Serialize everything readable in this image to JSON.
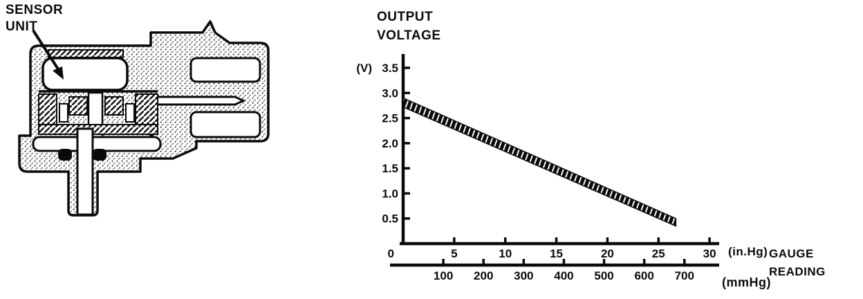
{
  "sensor": {
    "label": "SENSOR\nUNIT"
  },
  "chart": {
    "title": "OUTPUT\nVOLTAGE",
    "y_unit": "(V)",
    "origin_label": "0",
    "x_unit_primary": "(in.Hg)",
    "x_axis_name": "GAUGE\nREADING",
    "x_unit_secondary": "(mmHg)"
  },
  "chart_data": {
    "type": "area",
    "title": "OUTPUT VOLTAGE vs GAUGE READING",
    "ylabel": "OUTPUT VOLTAGE (V)",
    "xlabel": "GAUGE READING (in.Hg top scale, mmHg bottom scale)",
    "ylim": [
      0,
      3.5
    ],
    "xlim_inhg": [
      0,
      30
    ],
    "xlim_mmhg": [
      0,
      760
    ],
    "grid": false,
    "legend": "none",
    "y_ticks": [
      "3.5",
      "3.0",
      "2.5",
      "2.0",
      "1.5",
      "1.0",
      "0.5"
    ],
    "y_tick_values": [
      3.5,
      3.0,
      2.5,
      2.0,
      1.5,
      1.0,
      0.5
    ],
    "x_ticks_inhg": [
      5,
      10,
      15,
      20,
      25,
      30
    ],
    "x_ticks_mmhg": [
      100,
      200,
      300,
      400,
      500,
      600,
      700
    ],
    "series": [
      {
        "name": "output-voltage-tolerance-band",
        "style": "black band with white diagonal hatch",
        "x_inhg": [
          0,
          26.7
        ],
        "v_top": [
          2.9,
          0.5
        ],
        "v_bottom": [
          2.72,
          0.35
        ]
      }
    ],
    "colors": {
      "ink": "#0a0a0a",
      "paper": "#ffffff"
    }
  }
}
